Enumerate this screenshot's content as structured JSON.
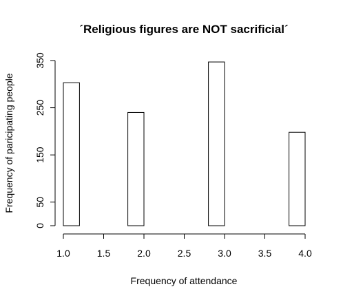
{
  "chart_data": {
    "type": "bar",
    "title": "´Religious figures are NOT sacrificial´",
    "xlabel": "Frequency of attendance",
    "ylabel": "Frequency of paricipating people",
    "x_ticks": [
      "1.0",
      "1.5",
      "2.0",
      "2.5",
      "3.0",
      "3.5",
      "4.0"
    ],
    "y_ticks": [
      "0",
      "50",
      "150",
      "250",
      "350"
    ],
    "xlim": [
      1.0,
      4.0
    ],
    "ylim": [
      0,
      350
    ],
    "bins": [
      {
        "from": 1.0,
        "to": 1.2,
        "value": 303
      },
      {
        "from": 1.8,
        "to": 2.0,
        "value": 240
      },
      {
        "from": 2.8,
        "to": 3.0,
        "value": 347
      },
      {
        "from": 3.8,
        "to": 4.0,
        "value": 198
      }
    ],
    "grid": false,
    "legend": "none"
  }
}
